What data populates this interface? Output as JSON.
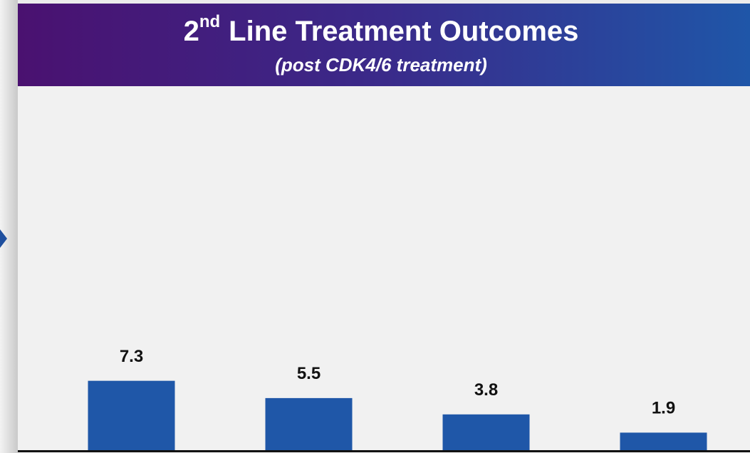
{
  "chart_data": {
    "type": "bar",
    "title": [
      "2",
      "nd",
      "Line Treatment Outcomes"
    ],
    "subtitle": "(post CDK4/6 treatment)",
    "categories": [
      null,
      null,
      null,
      null
    ],
    "values": [
      7.3,
      5.5,
      3.8,
      1.9
    ],
    "color": "#1f57a8",
    "ylim": [
      0,
      38
    ]
  }
}
